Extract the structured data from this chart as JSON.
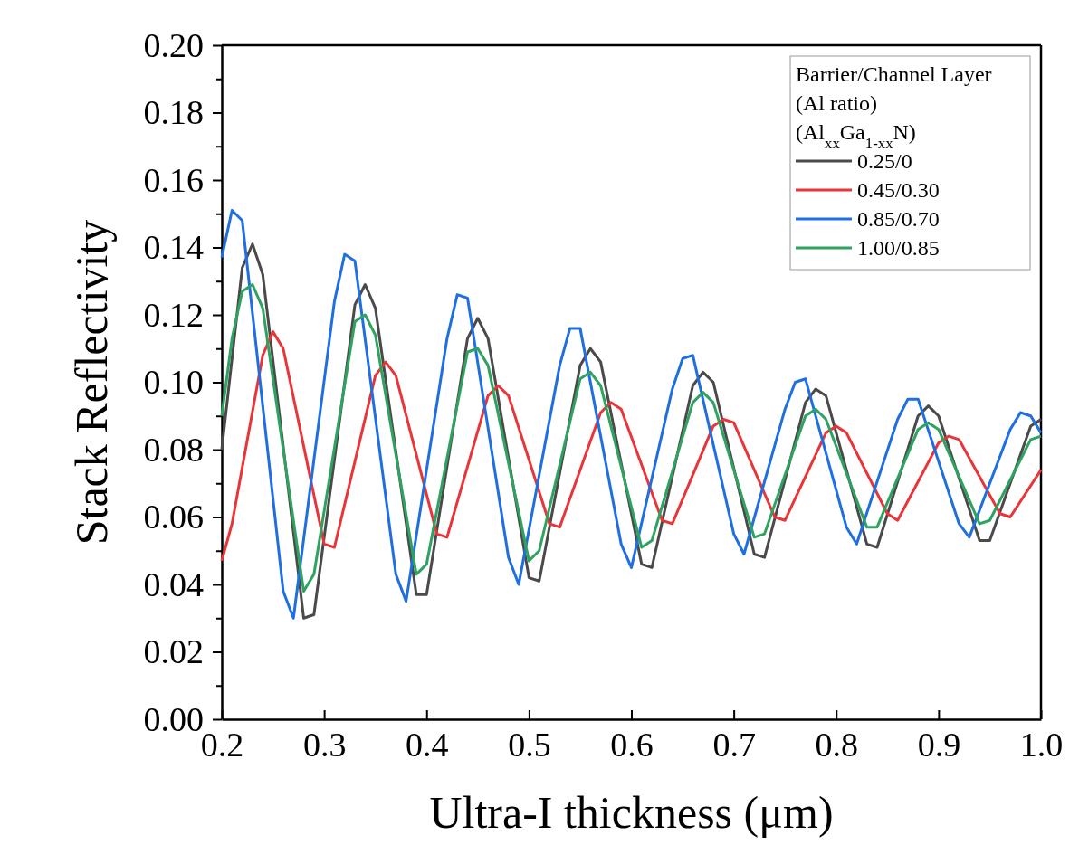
{
  "chart_data": {
    "type": "line",
    "xlabel": "Ultra-I thickness (μm)",
    "ylabel": "Stack Reflectivity",
    "legend_title": "Barrier/Channel Layer\n(Al ratio)\n(Al$_{xx}$Ga$_{1-xx}$N)",
    "legend": "top right",
    "grid": false,
    "marker": "none",
    "line_style": "solid",
    "xlim": [
      0.2,
      1.0
    ],
    "xticks": [
      {
        "value": 0.2,
        "label": "0.2"
      },
      {
        "value": 0.3,
        "label": "0.3"
      },
      {
        "value": 0.4,
        "label": "0.4"
      },
      {
        "value": 0.5,
        "label": "0.5"
      },
      {
        "value": 0.6,
        "label": "0.6"
      },
      {
        "value": 0.7,
        "label": "0.7"
      },
      {
        "value": 0.8,
        "label": "0.8"
      },
      {
        "value": 0.9,
        "label": "0.9"
      },
      {
        "value": 1.0,
        "label": "1.0"
      }
    ],
    "ylim": [
      0,
      0.2
    ],
    "yticks": [
      {
        "value": 0,
        "label": "0.00"
      },
      {
        "value": 0.01,
        "label": null
      },
      {
        "value": 0.02,
        "label": "0.02"
      },
      {
        "value": 0.03,
        "label": null
      },
      {
        "value": 0.04,
        "label": "0.04"
      },
      {
        "value": 0.05,
        "label": null
      },
      {
        "value": 0.06,
        "label": "0.06"
      },
      {
        "value": 0.07,
        "label": null
      },
      {
        "value": 0.08,
        "label": "0.08"
      },
      {
        "value": 0.09,
        "label": null
      },
      {
        "value": 0.1,
        "label": "0.10"
      },
      {
        "value": 0.11,
        "label": null
      },
      {
        "value": 0.12,
        "label": "0.12"
      },
      {
        "value": 0.13,
        "label": null
      },
      {
        "value": 0.14,
        "label": "0.14"
      },
      {
        "value": 0.15,
        "label": null
      },
      {
        "value": 0.16,
        "label": "0.16"
      },
      {
        "value": 0.17,
        "label": null
      },
      {
        "value": 0.18,
        "label": "0.18"
      },
      {
        "value": 0.19,
        "label": null
      },
      {
        "value": 0.2,
        "label": "0.20"
      }
    ],
    "series": [
      {
        "name": "0.25/0",
        "color": "#4a4a4a",
        "x": [
          0.2,
          0.22,
          0.23,
          0.24,
          0.28,
          0.29,
          0.33,
          0.34,
          0.35,
          0.39,
          0.4,
          0.44,
          0.45,
          0.46,
          0.5,
          0.51,
          0.55,
          0.56,
          0.57,
          0.61,
          0.62,
          0.66,
          0.67,
          0.68,
          0.72,
          0.73,
          0.77,
          0.78,
          0.79,
          0.83,
          0.84,
          0.88,
          0.89,
          0.9,
          0.94,
          0.95,
          0.99,
          1.0
        ],
        "values": [
          0.08,
          0.134,
          0.141,
          0.132,
          0.03,
          0.031,
          0.123,
          0.129,
          0.122,
          0.037,
          0.037,
          0.113,
          0.119,
          0.113,
          0.042,
          0.041,
          0.105,
          0.11,
          0.106,
          0.046,
          0.045,
          0.099,
          0.103,
          0.1,
          0.049,
          0.048,
          0.094,
          0.098,
          0.096,
          0.052,
          0.051,
          0.09,
          0.093,
          0.09,
          0.053,
          0.053,
          0.087,
          0.089
        ]
      },
      {
        "name": "0.45/0.30",
        "color": "#e8353a",
        "x": [
          0.2,
          0.21,
          0.24,
          0.25,
          0.26,
          0.3,
          0.31,
          0.35,
          0.36,
          0.37,
          0.41,
          0.42,
          0.46,
          0.47,
          0.48,
          0.52,
          0.53,
          0.57,
          0.58,
          0.59,
          0.63,
          0.64,
          0.68,
          0.69,
          0.7,
          0.74,
          0.75,
          0.79,
          0.8,
          0.81,
          0.85,
          0.86,
          0.9,
          0.91,
          0.92,
          0.96,
          0.97,
          1.0
        ],
        "values": [
          0.047,
          0.058,
          0.108,
          0.115,
          0.11,
          0.052,
          0.051,
          0.102,
          0.106,
          0.102,
          0.055,
          0.054,
          0.096,
          0.099,
          0.096,
          0.058,
          0.057,
          0.091,
          0.094,
          0.092,
          0.059,
          0.058,
          0.087,
          0.089,
          0.088,
          0.06,
          0.059,
          0.085,
          0.087,
          0.085,
          0.061,
          0.059,
          0.082,
          0.084,
          0.083,
          0.061,
          0.06,
          0.074
        ]
      },
      {
        "name": "0.85/0.70",
        "color": "#1f6fe0",
        "x": [
          0.2,
          0.21,
          0.22,
          0.26,
          0.27,
          0.31,
          0.32,
          0.33,
          0.37,
          0.38,
          0.42,
          0.43,
          0.44,
          0.48,
          0.49,
          0.53,
          0.54,
          0.55,
          0.59,
          0.6,
          0.64,
          0.65,
          0.66,
          0.7,
          0.71,
          0.75,
          0.76,
          0.77,
          0.81,
          0.82,
          0.86,
          0.87,
          0.88,
          0.92,
          0.93,
          0.97,
          0.98,
          0.99,
          1.0
        ],
        "values": [
          0.137,
          0.151,
          0.148,
          0.038,
          0.03,
          0.124,
          0.138,
          0.136,
          0.043,
          0.035,
          0.113,
          0.126,
          0.125,
          0.048,
          0.04,
          0.105,
          0.116,
          0.116,
          0.052,
          0.045,
          0.098,
          0.107,
          0.108,
          0.055,
          0.049,
          0.092,
          0.1,
          0.101,
          0.057,
          0.052,
          0.089,
          0.095,
          0.095,
          0.058,
          0.054,
          0.086,
          0.091,
          0.09,
          0.085
        ]
      },
      {
        "name": "1.00/0.85",
        "color": "#2ea360",
        "x": [
          0.2,
          0.21,
          0.22,
          0.23,
          0.24,
          0.28,
          0.29,
          0.33,
          0.34,
          0.35,
          0.39,
          0.4,
          0.44,
          0.45,
          0.46,
          0.5,
          0.51,
          0.55,
          0.56,
          0.57,
          0.61,
          0.62,
          0.66,
          0.67,
          0.68,
          0.72,
          0.73,
          0.77,
          0.78,
          0.79,
          0.83,
          0.84,
          0.88,
          0.89,
          0.9,
          0.94,
          0.95,
          0.99,
          1.0
        ],
        "values": [
          0.09,
          0.113,
          0.127,
          0.129,
          0.122,
          0.038,
          0.043,
          0.118,
          0.12,
          0.114,
          0.043,
          0.046,
          0.109,
          0.11,
          0.105,
          0.047,
          0.05,
          0.101,
          0.103,
          0.099,
          0.051,
          0.053,
          0.094,
          0.097,
          0.094,
          0.054,
          0.055,
          0.09,
          0.092,
          0.089,
          0.057,
          0.057,
          0.086,
          0.088,
          0.086,
          0.058,
          0.059,
          0.083,
          0.084
        ]
      }
    ]
  }
}
